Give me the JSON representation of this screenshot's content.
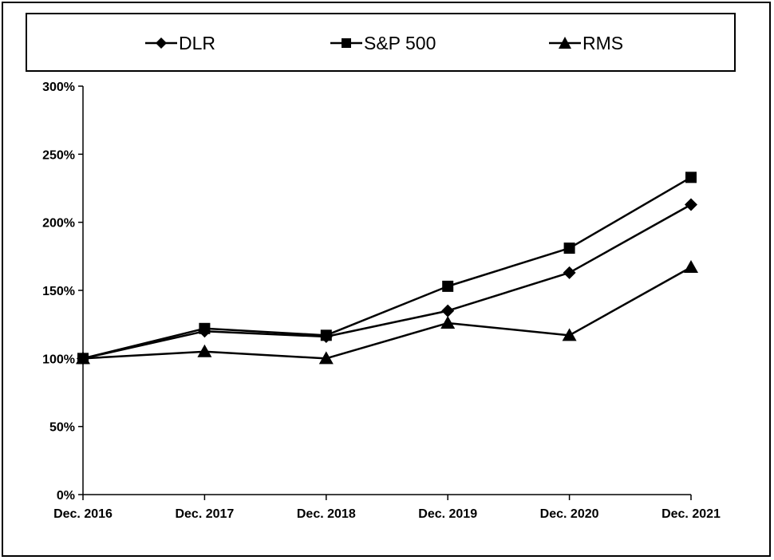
{
  "chart_data": {
    "type": "line",
    "categories": [
      "Dec. 2016",
      "Dec. 2017",
      "Dec. 2018",
      "Dec. 2019",
      "Dec. 2020",
      "Dec. 2021"
    ],
    "series": [
      {
        "name": "DLR",
        "marker": "diamond",
        "values": [
          100,
          120,
          116,
          135,
          163,
          213
        ]
      },
      {
        "name": "S&P 500",
        "marker": "square",
        "values": [
          100,
          122,
          117,
          153,
          181,
          233
        ]
      },
      {
        "name": "RMS",
        "marker": "triangle",
        "values": [
          100,
          105,
          100,
          126,
          117,
          167
        ]
      }
    ],
    "ylim": [
      0,
      300
    ],
    "yticks": [
      0,
      50,
      100,
      150,
      200,
      250,
      300
    ],
    "ytick_labels": [
      "0%",
      "50%",
      "100%",
      "150%",
      "200%",
      "250%",
      "300%"
    ],
    "grid": false,
    "legend_position": "top",
    "line_color": "#000000"
  }
}
